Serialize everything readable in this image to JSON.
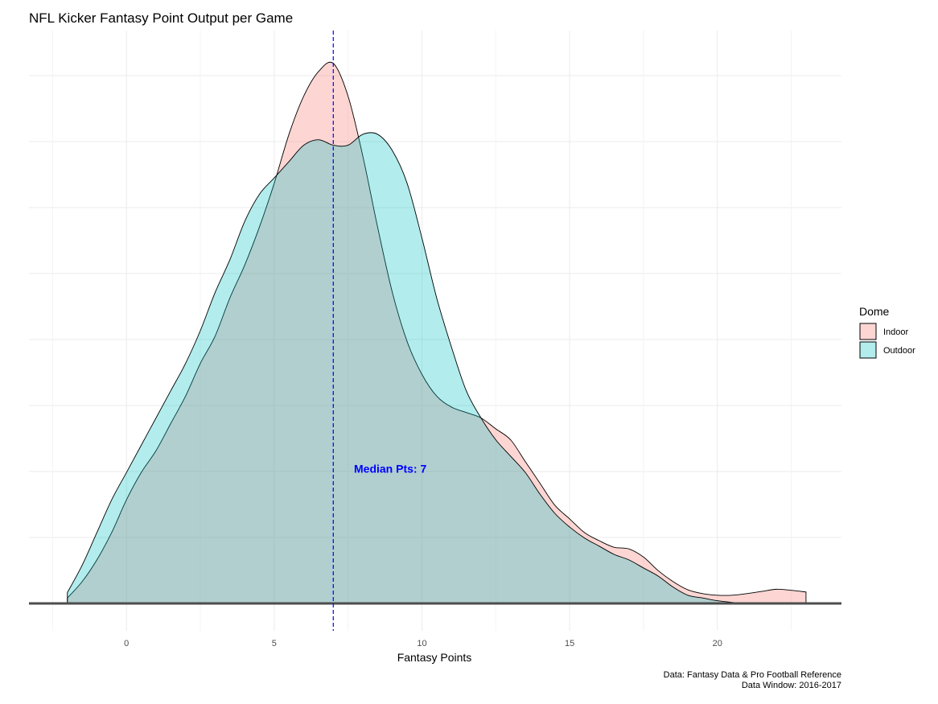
{
  "chart_data": {
    "type": "area",
    "title": "NFL Kicker Fantasy Point Output per Game",
    "xlabel": "Fantasy Points",
    "ylabel": "",
    "x_ticks": [
      0,
      5,
      10,
      15,
      20
    ],
    "xlim": [
      -3.3,
      24.2
    ],
    "ylim": [
      0,
      1
    ],
    "grid": true,
    "legend": {
      "title": "Dome",
      "position": "right",
      "entries": [
        {
          "name": "Indoor",
          "color": "#F8766D"
        },
        {
          "name": "Outdoor",
          "color": "#00BFC4"
        }
      ]
    },
    "median": {
      "x": 7,
      "label": "Median Pts: 7",
      "color": "#0000ff"
    },
    "annotation_y": 0.24,
    "caption": [
      "Data: Fantasy Data & Pro Football Reference",
      "Data Window: 2016-2017"
    ],
    "series": [
      {
        "name": "Indoor",
        "color": "#F8766D",
        "x": [
          -2,
          -1.5,
          -1,
          -0.5,
          0,
          0.5,
          1,
          1.5,
          2,
          2.5,
          3,
          3.5,
          4,
          4.5,
          5,
          5.5,
          6,
          6.5,
          7,
          7.5,
          8,
          8.5,
          9,
          9.5,
          10,
          10.5,
          11,
          11.5,
          12,
          12.5,
          13,
          13.5,
          14,
          14.5,
          15,
          15.5,
          16,
          16.5,
          17,
          17.5,
          18,
          18.5,
          19,
          19.5,
          20,
          20.5,
          21,
          21.5,
          22,
          22.5,
          23
        ],
        "y": [
          0.01,
          0.04,
          0.08,
          0.13,
          0.19,
          0.24,
          0.28,
          0.33,
          0.38,
          0.44,
          0.49,
          0.56,
          0.62,
          0.69,
          0.77,
          0.86,
          0.93,
          0.975,
          0.99,
          0.93,
          0.82,
          0.69,
          0.57,
          0.48,
          0.42,
          0.38,
          0.36,
          0.35,
          0.34,
          0.32,
          0.3,
          0.26,
          0.22,
          0.18,
          0.155,
          0.13,
          0.115,
          0.103,
          0.1,
          0.085,
          0.06,
          0.04,
          0.025,
          0.018,
          0.015,
          0.015,
          0.018,
          0.022,
          0.026,
          0.024,
          0.021
        ]
      },
      {
        "name": "Outdoor",
        "color": "#00BFC4",
        "x": [
          -2,
          -1.5,
          -1,
          -0.5,
          0,
          0.5,
          1,
          1.5,
          2,
          2.5,
          3,
          3.5,
          4,
          4.5,
          5,
          5.5,
          6,
          6.5,
          7,
          7.5,
          8,
          8.5,
          9,
          9.5,
          10,
          10.5,
          11,
          11.5,
          12,
          12.5,
          13,
          13.5,
          14,
          14.5,
          15,
          15.5,
          16,
          16.5,
          17,
          17.5,
          18,
          18.5,
          19,
          19.5,
          20,
          20.5,
          21,
          21.5,
          22,
          22.5,
          23
        ],
        "y": [
          0.02,
          0.07,
          0.13,
          0.19,
          0.24,
          0.29,
          0.34,
          0.39,
          0.44,
          0.5,
          0.57,
          0.63,
          0.7,
          0.75,
          0.78,
          0.81,
          0.84,
          0.85,
          0.84,
          0.84,
          0.86,
          0.86,
          0.83,
          0.77,
          0.67,
          0.56,
          0.47,
          0.39,
          0.34,
          0.3,
          0.27,
          0.24,
          0.2,
          0.165,
          0.14,
          0.12,
          0.105,
          0.09,
          0.08,
          0.065,
          0.05,
          0.03,
          0.015,
          0.01,
          0.005,
          0.002,
          0,
          0,
          0,
          0,
          0
        ]
      }
    ]
  }
}
